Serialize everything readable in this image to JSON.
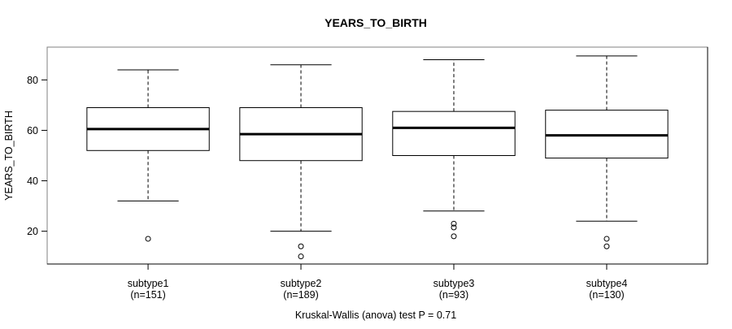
{
  "chart_data": {
    "type": "boxplot",
    "title": "YEARS_TO_BIRTH",
    "ylabel": "YEARS_TO_BIRTH",
    "caption": "Kruskal-Wallis (anova) test P = 0.71",
    "ylim": [
      7,
      93
    ],
    "yticks": [
      20,
      40,
      60,
      80
    ],
    "grid": false,
    "legend": "none",
    "categories": [
      "subtype1",
      "subtype2",
      "subtype3",
      "subtype4"
    ],
    "category_sublabels": [
      "(n=151)",
      "(n=189)",
      "(n=93)",
      "(n=130)"
    ],
    "boxes": [
      {
        "label": "subtype1",
        "sublabel": "(n=151)",
        "n": 151,
        "whisker_low": 32,
        "q1": 52,
        "median": 60.5,
        "q3": 69,
        "whisker_high": 84,
        "outliers": [
          17
        ]
      },
      {
        "label": "subtype2",
        "sublabel": "(n=189)",
        "n": 189,
        "whisker_low": 20,
        "q1": 48,
        "median": 58.5,
        "q3": 69,
        "whisker_high": 86,
        "outliers": [
          14,
          10
        ]
      },
      {
        "label": "subtype3",
        "sublabel": "(n=93)",
        "n": 93,
        "whisker_low": 28,
        "q1": 50,
        "median": 61,
        "q3": 67.5,
        "whisker_high": 88,
        "outliers": [
          23,
          21.5,
          18
        ]
      },
      {
        "label": "subtype4",
        "sublabel": "(n=130)",
        "n": 130,
        "whisker_low": 24,
        "q1": 49,
        "median": 58,
        "q3": 68,
        "whisker_high": 89.5,
        "outliers": [
          17,
          14
        ]
      }
    ],
    "colors": {
      "line": "#000000",
      "median": "#000000",
      "box_fill": "#ffffff",
      "frame": "#808080",
      "background": "#ffffff"
    }
  }
}
